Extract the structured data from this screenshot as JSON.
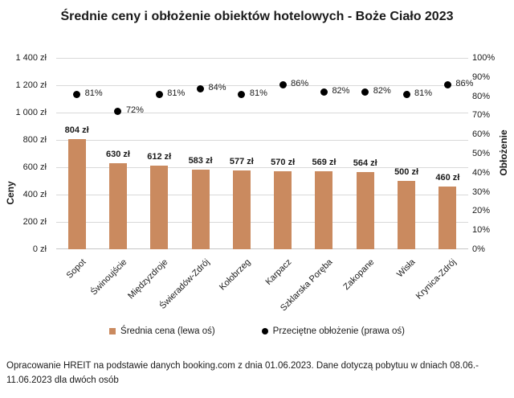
{
  "title": "Średnie ceny i obłożenie obiektów hotelowych - Boże Ciało 2023",
  "chart_data": {
    "type": "combo-bar-scatter",
    "categories": [
      "Sopot",
      "Świnoujście",
      "Międzyzdroje",
      "Świeradów-Zdrój",
      "Kołobrzeg",
      "Karpacz",
      "Szklarska Poręba",
      "Zakopane",
      "Wisła",
      "Krynica-Zdrój"
    ],
    "series": [
      {
        "name": "Średnia cena (lewa oś)",
        "type": "bar",
        "axis": "left",
        "color": "#CA8A5F",
        "values": [
          804,
          630,
          612,
          583,
          577,
          570,
          569,
          564,
          500,
          460
        ],
        "labels": [
          "804 zł",
          "630 zł",
          "612 zł",
          "583 zł",
          "577 zł",
          "570 zł",
          "569 zł",
          "564 zł",
          "500 zł",
          "460 zł"
        ]
      },
      {
        "name": "Przeciętne obłożenie (prawa oś)",
        "type": "scatter",
        "axis": "right",
        "color": "#000000",
        "values": [
          81,
          72,
          81,
          84,
          81,
          86,
          82,
          82,
          81,
          86
        ],
        "labels": [
          "81%",
          "72%",
          "81%",
          "84%",
          "81%",
          "86%",
          "82%",
          "82%",
          "81%",
          "86%"
        ]
      }
    ],
    "left_axis": {
      "title": "Ceny",
      "min": 0,
      "max": 1400,
      "ticks": [
        "1 400 zł",
        "1 200 zł",
        "1 000 zł",
        "800 zł",
        "600 zł",
        "400 zł",
        "200 zł",
        "0 zł"
      ]
    },
    "right_axis": {
      "title": "Obłożenie",
      "min": 0,
      "max": 100,
      "ticks": [
        "100%",
        "90%",
        "80%",
        "70%",
        "60%",
        "50%",
        "40%",
        "30%",
        "20%",
        "10%",
        "0%"
      ]
    },
    "grid": true,
    "legend_position": "bottom",
    "gridline_color": "#d9d9d9"
  },
  "legend": [
    "Średnia cena (lewa oś)",
    "Przeciętne obłożenie (prawa oś)"
  ],
  "footer": [
    "Opracowanie HREIT na podstawie danych booking.com z dnia 01.06.2023. Dane dotyczą pobytuu w dniach 08.06.-",
    "11.06.2023 dla dwóch osób"
  ]
}
